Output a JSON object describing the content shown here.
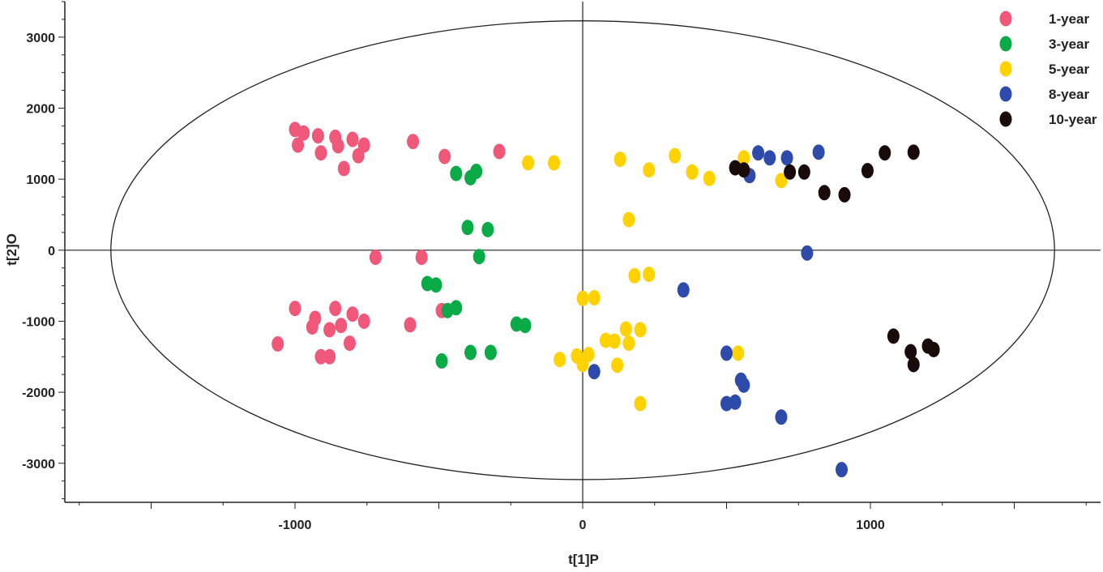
{
  "chart_data": {
    "type": "scatter",
    "xlabel": "t[1]P",
    "ylabel": "t[2]O",
    "xlim": [
      -1800,
      1800
    ],
    "ylim": [
      -3550,
      3500
    ],
    "x_ticks": [
      -1000,
      0,
      1000
    ],
    "x_tick_labels": [
      "-1000",
      "0",
      "1000"
    ],
    "y_ticks": [
      3000,
      2000,
      1000,
      0,
      -1000,
      -2000,
      -3000
    ],
    "y_tick_labels": [
      "3000",
      "2000",
      "1000",
      "0",
      "-1000",
      "-2000",
      "-3000"
    ],
    "grid": false,
    "legend_position": "top-right",
    "ellipse": {
      "cx": 0,
      "cy": 0,
      "rx": 1640,
      "ry": 3230
    },
    "series": [
      {
        "name": "1-year",
        "color": "#f0587a",
        "points": [
          [
            -1000,
            1700
          ],
          [
            -970,
            1650
          ],
          [
            -920,
            1610
          ],
          [
            -860,
            1590
          ],
          [
            -800,
            1560
          ],
          [
            -760,
            1480
          ],
          [
            -990,
            1480
          ],
          [
            -910,
            1370
          ],
          [
            -850,
            1470
          ],
          [
            -780,
            1330
          ],
          [
            -830,
            1150
          ],
          [
            -590,
            1530
          ],
          [
            -480,
            1320
          ],
          [
            -290,
            1390
          ],
          [
            -720,
            -100
          ],
          [
            -560,
            -100
          ],
          [
            -1000,
            -820
          ],
          [
            -930,
            -960
          ],
          [
            -860,
            -820
          ],
          [
            -800,
            -900
          ],
          [
            -760,
            -1000
          ],
          [
            -940,
            -1080
          ],
          [
            -880,
            -1120
          ],
          [
            -840,
            -1060
          ],
          [
            -1060,
            -1320
          ],
          [
            -910,
            -1500
          ],
          [
            -880,
            -1500
          ],
          [
            -810,
            -1310
          ],
          [
            -600,
            -1050
          ],
          [
            -490,
            -850
          ]
        ]
      },
      {
        "name": "3-year",
        "color": "#0aaa46",
        "points": [
          [
            -440,
            1080
          ],
          [
            -390,
            1020
          ],
          [
            -370,
            1110
          ],
          [
            -400,
            320
          ],
          [
            -330,
            290
          ],
          [
            -360,
            -90
          ],
          [
            -540,
            -470
          ],
          [
            -510,
            -490
          ],
          [
            -470,
            -850
          ],
          [
            -440,
            -810
          ],
          [
            -490,
            -1560
          ],
          [
            -390,
            -1440
          ],
          [
            -320,
            -1440
          ],
          [
            -230,
            -1040
          ],
          [
            -200,
            -1060
          ]
        ]
      },
      {
        "name": "5-year",
        "color": "#ffd200",
        "points": [
          [
            -190,
            1230
          ],
          [
            -100,
            1230
          ],
          [
            130,
            1280
          ],
          [
            230,
            1130
          ],
          [
            320,
            1330
          ],
          [
            380,
            1100
          ],
          [
            440,
            1010
          ],
          [
            560,
            1300
          ],
          [
            690,
            980
          ],
          [
            160,
            430
          ],
          [
            180,
            -360
          ],
          [
            230,
            -340
          ],
          [
            0,
            -680
          ],
          [
            40,
            -670
          ],
          [
            -80,
            -1540
          ],
          [
            -20,
            -1490
          ],
          [
            20,
            -1470
          ],
          [
            0,
            -1610
          ],
          [
            80,
            -1270
          ],
          [
            110,
            -1280
          ],
          [
            150,
            -1110
          ],
          [
            160,
            -1310
          ],
          [
            200,
            -1120
          ],
          [
            120,
            -1620
          ],
          [
            200,
            -2160
          ],
          [
            540,
            -1450
          ]
        ]
      },
      {
        "name": "8-year",
        "color": "#2e4aaa",
        "points": [
          [
            580,
            1050
          ],
          [
            610,
            1370
          ],
          [
            650,
            1300
          ],
          [
            710,
            1300
          ],
          [
            820,
            1380
          ],
          [
            780,
            -40
          ],
          [
            350,
            -560
          ],
          [
            500,
            -1450
          ],
          [
            550,
            -1830
          ],
          [
            560,
            -1900
          ],
          [
            500,
            -2160
          ],
          [
            530,
            -2140
          ],
          [
            690,
            -2350
          ],
          [
            900,
            -3090
          ],
          [
            40,
            -1710
          ]
        ]
      },
      {
        "name": "10-year",
        "color": "#1a0b0b",
        "points": [
          [
            530,
            1160
          ],
          [
            560,
            1130
          ],
          [
            720,
            1100
          ],
          [
            770,
            1100
          ],
          [
            840,
            810
          ],
          [
            910,
            780
          ],
          [
            990,
            1120
          ],
          [
            1050,
            1370
          ],
          [
            1150,
            1380
          ],
          [
            1080,
            -1210
          ],
          [
            1140,
            -1430
          ],
          [
            1150,
            -1610
          ],
          [
            1200,
            -1350
          ],
          [
            1220,
            -1400
          ]
        ]
      }
    ]
  }
}
